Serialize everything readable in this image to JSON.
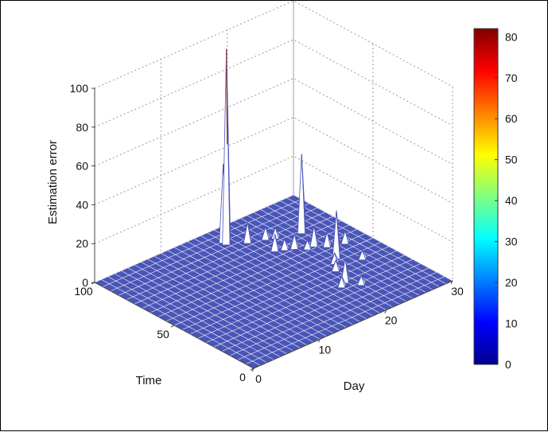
{
  "chart_data": {
    "type": "surface",
    "title": "",
    "xlabel": "Day",
    "ylabel": "Time",
    "zlabel": "Estimation error",
    "xlim": [
      0,
      30
    ],
    "ylim": [
      0,
      100
    ],
    "zlim": [
      0,
      100
    ],
    "x_ticks": [
      "0",
      "10",
      "20",
      "30"
    ],
    "y_ticks": [
      "0",
      "50",
      "100"
    ],
    "z_ticks": [
      "0",
      "20",
      "40",
      "60",
      "80",
      "100"
    ],
    "grid": true,
    "colormap": "jet",
    "surface_color": "#4a55b8",
    "edge_color": "#ffffff",
    "colorbar": {
      "min": 0,
      "max": 82,
      "ticks": [
        "0",
        "10",
        "20",
        "30",
        "40",
        "50",
        "60",
        "70",
        "80"
      ],
      "colors": [
        "#00008f",
        "#0000ff",
        "#0080ff",
        "#00ffff",
        "#80ff80",
        "#ffff00",
        "#ff8000",
        "#ff0000",
        "#800000"
      ]
    },
    "background_level": 0,
    "peaks": [
      {
        "day": 17,
        "time": 88,
        "error": 100
      },
      {
        "day": 17,
        "time": 90,
        "error": 40
      },
      {
        "day": 19,
        "time": 83,
        "error": 10
      },
      {
        "day": 21,
        "time": 80,
        "error": 6
      },
      {
        "day": 22,
        "time": 78,
        "error": 5
      },
      {
        "day": 20,
        "time": 70,
        "error": 8
      },
      {
        "day": 21,
        "time": 68,
        "error": 5
      },
      {
        "day": 22,
        "time": 66,
        "error": 7
      },
      {
        "day": 23,
        "time": 62,
        "error": 4
      },
      {
        "day": 25,
        "time": 74,
        "error": 40
      },
      {
        "day": 24,
        "time": 62,
        "error": 10
      },
      {
        "day": 25,
        "time": 58,
        "error": 7
      },
      {
        "day": 27,
        "time": 55,
        "error": 6
      },
      {
        "day": 24,
        "time": 48,
        "error": 24
      },
      {
        "day": 23,
        "time": 45,
        "error": 5
      },
      {
        "day": 22,
        "time": 40,
        "error": 5
      },
      {
        "day": 26,
        "time": 40,
        "error": 4
      },
      {
        "day": 21,
        "time": 30,
        "error": 12
      },
      {
        "day": 20,
        "time": 28,
        "error": 5
      },
      {
        "day": 22,
        "time": 24,
        "error": 4
      }
    ]
  }
}
